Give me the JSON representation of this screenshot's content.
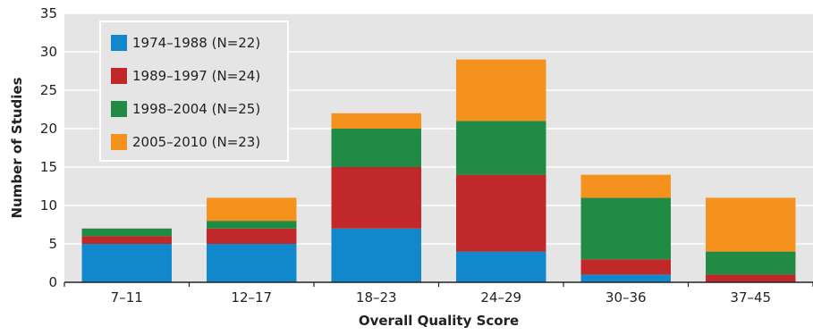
{
  "chart_data": {
    "type": "bar",
    "stacked": true,
    "title": "",
    "xlabel": "Overall Quality Score",
    "ylabel": "Number of Studies",
    "categories": [
      "7–11",
      "12–17",
      "18–23",
      "24–29",
      "30–36",
      "37–45"
    ],
    "ylim": [
      0,
      35
    ],
    "yticks": [
      0,
      5,
      10,
      15,
      20,
      25,
      30,
      35
    ],
    "grid": true,
    "legend_position": "top-left",
    "series": [
      {
        "name": "1974–1988 (N=22)",
        "color": "#1188cc",
        "values": [
          5,
          5,
          7,
          4,
          1,
          0
        ]
      },
      {
        "name": "1989–1997 (N=24)",
        "color": "#c0282a",
        "values": [
          1,
          2,
          8,
          10,
          2,
          1
        ]
      },
      {
        "name": "1998–2004 (N=25)",
        "color": "#218b45",
        "values": [
          1,
          1,
          5,
          7,
          8,
          3
        ]
      },
      {
        "name": "2005–2010 (N=23)",
        "color": "#f5921e",
        "values": [
          0,
          3,
          2,
          8,
          3,
          7
        ]
      }
    ],
    "colors": {
      "background": "#e5e5e5",
      "grid": "#ffffff",
      "axis": "#222222"
    }
  }
}
